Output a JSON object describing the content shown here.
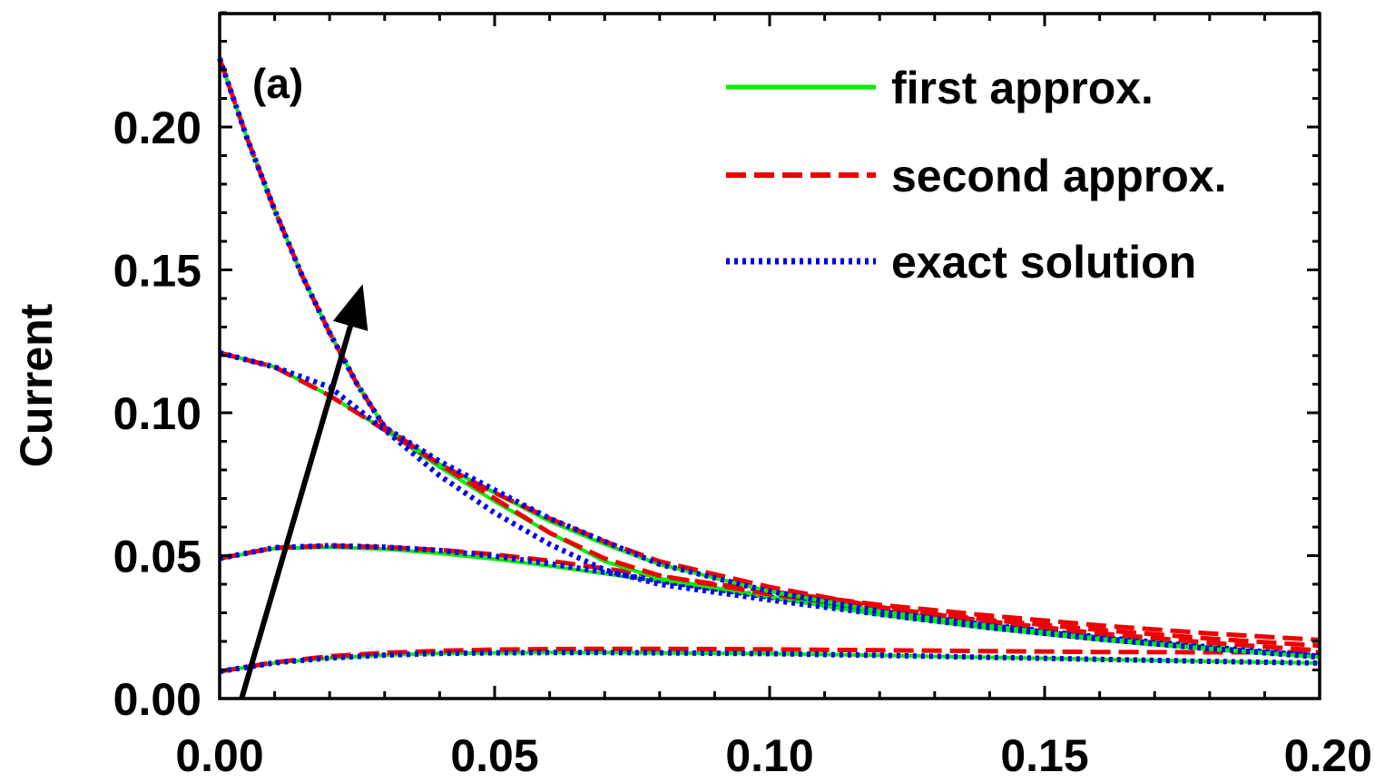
{
  "chart_data": {
    "type": "line",
    "panel_label": "(a)",
    "title": "",
    "xlabel": "",
    "ylabel": "Current",
    "xlim": [
      0.0,
      0.2
    ],
    "ylim": [
      0.0,
      0.24
    ],
    "x_ticks": [
      0.0,
      0.05,
      0.1,
      0.15,
      0.2
    ],
    "x_tick_labels": [
      "0.00",
      "0.05",
      "0.10",
      "0.15",
      "0.20"
    ],
    "y_ticks": [
      0.0,
      0.05,
      0.1,
      0.15,
      0.2
    ],
    "y_tick_labels": [
      "0.00",
      "0.05",
      "0.10",
      "0.15",
      "0.20"
    ],
    "grid": false,
    "legend": {
      "position": "top-right",
      "entries": [
        {
          "label": "first approx.",
          "color": "#00ee00",
          "style": "solid"
        },
        {
          "label": "second approx.",
          "color": "#ee0000",
          "style": "dashed"
        },
        {
          "label": "exact solution",
          "color": "#0000ee",
          "style": "dotted"
        }
      ]
    },
    "arrow": {
      "from": [
        0.004,
        0.0
      ],
      "to": [
        0.026,
        0.145
      ],
      "color": "#000000"
    },
    "curve_groups": [
      {
        "x": [
          0.0,
          0.01,
          0.02,
          0.03,
          0.04,
          0.05,
          0.06,
          0.07,
          0.08,
          0.1,
          0.12,
          0.14,
          0.16,
          0.18,
          0.2
        ],
        "series": [
          {
            "name": "first approx.",
            "values": [
              0.0095,
              0.0125,
              0.0142,
              0.0152,
              0.0158,
              0.016,
              0.0161,
              0.0161,
              0.016,
              0.0157,
              0.0151,
              0.0144,
              0.0137,
              0.013,
              0.0124
            ]
          },
          {
            "name": "second approx.",
            "values": [
              0.0095,
              0.0127,
              0.0148,
              0.016,
              0.0167,
              0.0171,
              0.0173,
              0.0174,
              0.0174,
              0.0172,
              0.0169,
              0.0166,
              0.0163,
              0.0162,
              0.0162
            ]
          },
          {
            "name": "exact solution",
            "values": [
              0.0095,
              0.0125,
              0.0142,
              0.0152,
              0.0158,
              0.016,
              0.0161,
              0.0161,
              0.016,
              0.0157,
              0.0151,
              0.0144,
              0.0137,
              0.013,
              0.0124
            ]
          }
        ]
      },
      {
        "x": [
          0.0,
          0.01,
          0.02,
          0.03,
          0.04,
          0.05,
          0.06,
          0.07,
          0.08,
          0.1,
          0.12,
          0.14,
          0.16,
          0.18,
          0.2
        ],
        "series": [
          {
            "name": "first approx.",
            "values": [
              0.049,
              0.0525,
              0.053,
              0.0523,
              0.0508,
              0.0488,
              0.0464,
              0.0437,
              0.041,
              0.0355,
              0.0303,
              0.0257,
              0.0215,
              0.018,
              0.0148
            ]
          },
          {
            "name": "second approx.",
            "values": [
              0.049,
              0.0528,
              0.0535,
              0.053,
              0.052,
              0.0504,
              0.0482,
              0.0455,
              0.0428,
              0.0375,
              0.0328,
              0.029,
              0.0256,
              0.0228,
              0.0205
            ]
          },
          {
            "name": "exact solution",
            "values": [
              0.049,
              0.0528,
              0.0535,
              0.053,
              0.0518,
              0.0498,
              0.0472,
              0.0442,
              0.0412,
              0.0355,
              0.0303,
              0.0257,
              0.0215,
              0.018,
              0.0148
            ]
          }
        ]
      },
      {
        "x": [
          0.0,
          0.01,
          0.02,
          0.03,
          0.04,
          0.05,
          0.06,
          0.07,
          0.08,
          0.1,
          0.12,
          0.14,
          0.16,
          0.18,
          0.2
        ],
        "series": [
          {
            "name": "first approx.",
            "values": [
              0.121,
              0.116,
              0.106,
              0.094,
              0.081,
              0.069,
              0.058,
              0.048,
              0.042,
              0.0355,
              0.0293,
              0.0245,
              0.0205,
              0.0172,
              0.0145
            ]
          },
          {
            "name": "second approx.",
            "values": [
              0.121,
              0.116,
              0.106,
              0.094,
              0.082,
              0.07,
              0.058,
              0.049,
              0.043,
              0.0365,
              0.0315,
              0.0275,
              0.024,
              0.021,
              0.0185
            ]
          },
          {
            "name": "exact solution",
            "values": [
              0.121,
              0.116,
              0.109,
              0.094,
              0.078,
              0.065,
              0.054,
              0.045,
              0.04,
              0.0345,
              0.0295,
              0.0248,
              0.0208,
              0.0175,
              0.0148
            ]
          }
        ]
      },
      {
        "x": [
          0.0,
          0.005,
          0.01,
          0.015,
          0.02,
          0.025,
          0.03,
          0.04,
          0.05,
          0.06,
          0.07,
          0.08,
          0.1,
          0.12,
          0.14,
          0.16,
          0.18,
          0.2
        ],
        "series": [
          {
            "name": "first approx.",
            "values": [
              0.224,
              0.196,
              0.171,
              0.148,
              0.128,
              0.11,
              0.095,
              0.082,
              0.072,
              0.062,
              0.054,
              0.047,
              0.0375,
              0.0305,
              0.0255,
              0.021,
              0.0175,
              0.0145
            ]
          },
          {
            "name": "second approx.",
            "values": [
              0.224,
              0.196,
              0.171,
              0.148,
              0.128,
              0.11,
              0.095,
              0.082,
              0.072,
              0.063,
              0.055,
              0.048,
              0.039,
              0.032,
              0.027,
              0.0228,
              0.0195,
              0.0168
            ]
          },
          {
            "name": "exact solution",
            "values": [
              0.224,
              0.196,
              0.171,
              0.148,
              0.128,
              0.11,
              0.095,
              0.083,
              0.073,
              0.063,
              0.055,
              0.047,
              0.0375,
              0.0305,
              0.0255,
              0.021,
              0.0175,
              0.0145
            ]
          }
        ]
      }
    ]
  }
}
